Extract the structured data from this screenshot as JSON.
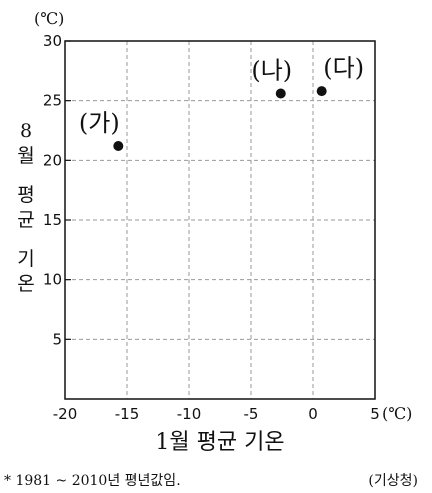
{
  "chart_data": {
    "type": "scatter",
    "title": "",
    "xlabel": "1월 평균 기온",
    "ylabel_lines": [
      "8",
      "월",
      "평",
      "균",
      "기",
      "온"
    ],
    "x_unit": "(℃)",
    "y_unit": "(℃)",
    "xlim": [
      -20,
      5
    ],
    "ylim": [
      0,
      30
    ],
    "x_ticks": [
      -20,
      -15,
      -10,
      -5,
      0,
      5
    ],
    "y_ticks": [
      5,
      10,
      15,
      20,
      25,
      30
    ],
    "grid": true,
    "points": [
      {
        "label": "(가)",
        "x": -15.7,
        "y": 21.2
      },
      {
        "label": "(나)",
        "x": -2.6,
        "y": 25.6
      },
      {
        "label": "(다)",
        "x": 0.7,
        "y": 25.8
      }
    ]
  },
  "footnote": "* 1981 ~ 2010년 평년값임.",
  "source": "(기상청)"
}
